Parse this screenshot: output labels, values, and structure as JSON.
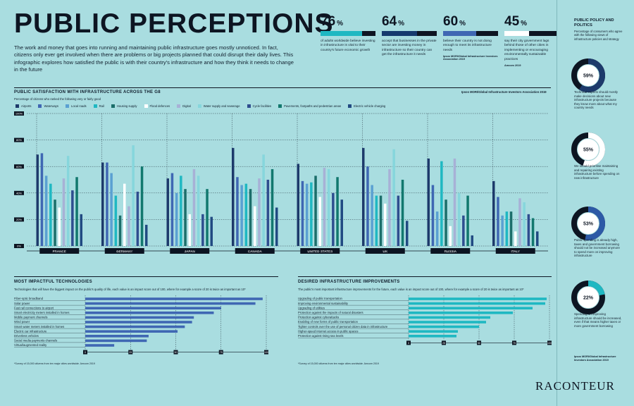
{
  "header": {
    "title": "PUBLIC PERCEPTIONS",
    "intro": "The work and money that goes into running and maintaining public infrastructure goes mostly unnoticed. In fact, citizens only ever get involved when there are problems or big projects planned that could disrupt their daily lives. This infographic explores how satisfied the public is with their country's infrastructure and how they think it needs to change in the future"
  },
  "stats": [
    {
      "value": "76",
      "unit": "%",
      "fraction": 0.76,
      "color": "#1fb8c2",
      "desc": "of adults worldwide believe investing in infrastructure is vital to their country's future economic growth",
      "source": ""
    },
    {
      "value": "64",
      "unit": "%",
      "fraction": 0.64,
      "color": "#163a6e",
      "desc": "accept that businesses in the private sector are investing money in infrastructure so their country can get the infrastructure it needs",
      "source": ""
    },
    {
      "value": "60",
      "unit": "%",
      "fraction": 0.6,
      "color": "#3f67b3",
      "desc": "believe their country is not doing enough to meet its infrastructure needs",
      "source": "Ipsos MORI/Global Infrastructure Investors Association 2019"
    },
    {
      "value": "45",
      "unit": "%",
      "fraction": 0.45,
      "color": "#ffffff",
      "desc": "say their city government lags behind those of other cities in implementing or encouraging environmentally sustainable practices",
      "source": "Amcom 2019"
    }
  ],
  "sidebar": {
    "title": "PUBLIC POLICY AND POLITICS",
    "subtitle": "Percentage of consumers who agree with the following views of infrastructure policies and strategy",
    "donuts": [
      {
        "value": 59,
        "label": "59%",
        "color": "#1d3a6b",
        "text": "Technical experts should mostly make decisions about new infrastructure projects because they know more about what my country needs"
      },
      {
        "value": 55,
        "label": "55%",
        "color": "#ffffff",
        "text": "We should prioritise maintaining and repairing existing infrastructure before spending on new infrastructure"
      },
      {
        "value": 53,
        "label": "53%",
        "color": "#2d5aa6",
        "text": "Public spending is already high, taxes and government borrowing should not be increased anymore to spend more on improving infrastructure"
      },
      {
        "value": 22,
        "label": "22%",
        "color": "#1fb8c2",
        "text": "Spending on improving infrastructure should be increased, even if that means higher taxes or more government borrowing"
      }
    ],
    "source": "Ipsos MORI/Global Infrastructure Investors Association 2019"
  },
  "brand": "RACONTEUR",
  "satisfaction": {
    "title": "PUBLIC SATISFACTION WITH INFRASTRUCTURE ACROSS THE G8",
    "subtitle": "Percentage of citizens who ranked the following very or fairly good",
    "source": "Ipsos MORI/Global Infrastructure Investors Association 2019"
  },
  "chart_data": [
    {
      "type": "bar",
      "title": "PUBLIC SATISFACTION WITH INFRASTRUCTURE ACROSS THE G8",
      "ylim": [
        0,
        100
      ],
      "yticks": [
        0,
        20,
        40,
        60,
        80,
        100
      ],
      "ytick_labels": [
        "0%",
        "20%",
        "40%",
        "60%",
        "80%",
        "100%"
      ],
      "categories": [
        "FRANCE",
        "GERMANY",
        "JAPAN",
        "CANADA",
        "UNITED STATES",
        "UK",
        "RUSSIA",
        "ITALY"
      ],
      "series": [
        {
          "name": "Airports",
          "color": "#1d3a6b",
          "values": [
            69,
            63,
            51,
            74,
            62,
            74,
            66,
            49
          ]
        },
        {
          "name": "Waterways",
          "color": "#3f67b3",
          "values": [
            70,
            63,
            55,
            52,
            49,
            60,
            46,
            37
          ]
        },
        {
          "name": "Local roads",
          "color": "#5aa0d2",
          "values": [
            53,
            55,
            40,
            46,
            47,
            46,
            26,
            23
          ]
        },
        {
          "name": "Rail",
          "color": "#1fb8c2",
          "values": [
            47,
            38,
            53,
            47,
            48,
            38,
            64,
            26
          ]
        },
        {
          "name": "Housing supply",
          "color": "#1b6e6a",
          "values": [
            35,
            23,
            43,
            43,
            53,
            38,
            35,
            26
          ]
        },
        {
          "name": "Flood defences",
          "color": "#ffffff",
          "values": [
            29,
            47,
            24,
            30,
            37,
            32,
            15,
            11
          ]
        },
        {
          "name": "Digital",
          "color": "#a7b1d6",
          "values": [
            51,
            30,
            58,
            51,
            59,
            58,
            66,
            36
          ]
        },
        {
          "name": "Water supply and sewerage",
          "color": "#86d6dc",
          "values": [
            68,
            76,
            53,
            69,
            58,
            73,
            40,
            33
          ]
        },
        {
          "name": "Cycle facilities",
          "color": "#2e4d8f",
          "values": [
            42,
            41,
            24,
            50,
            40,
            38,
            23,
            24
          ]
        },
        {
          "name": "Pavements, footpaths and pedestrian areas",
          "color": "#12786e",
          "values": [
            52,
            60,
            43,
            58,
            52,
            50,
            38,
            21
          ]
        },
        {
          "name": "Electric vehicle charging",
          "color": "#214a82",
          "values": [
            24,
            16,
            22,
            29,
            35,
            19,
            8,
            11
          ]
        }
      ]
    },
    {
      "type": "bar",
      "orientation": "horizontal",
      "title": "MOST IMPACTFUL TECHNOLOGIES",
      "subtitle": "Technologies that will have the biggest impact on the public's quality of life, each value is an impact score out of 100, where for example a score of 20 is twice as important as 10*",
      "xlim": [
        0,
        100
      ],
      "xticks": [
        0,
        25,
        50,
        75,
        100
      ],
      "xtick_labels": [
        "0",
        "25",
        "50",
        "75",
        "100"
      ],
      "color": "#3f67b3",
      "categories": [
        "Fiber-optic broadband",
        "Solar power",
        "Fast rail connections to airport",
        "Smart electricity meters installed in homes",
        "Mobile payment channels",
        "Wind power",
        "Smart water meters installed in homes",
        "Electric car infrastructure",
        "Driverless vehicles",
        "Social media payments channels",
        "Virtual/augmented reality"
      ],
      "values": [
        98,
        94,
        75,
        71,
        60,
        59,
        55,
        51,
        35,
        34,
        16
      ],
      "footnote": "*Survey of 15,000 citizens from ten major cities worldwide. Amcom 2019"
    },
    {
      "type": "bar",
      "orientation": "horizontal",
      "title": "DESIRED INFRASTRUCTURE IMPROVEMENTS",
      "subtitle": "The public's most important infrastructure improvements for the future, each value is an impact score out of 100, where for example a score of 20 is twice as important as 10*",
      "xlim": [
        0,
        100
      ],
      "xticks": [
        0,
        25,
        50,
        75,
        100
      ],
      "xtick_labels": [
        "0",
        "25",
        "50",
        "75",
        "100"
      ],
      "color": "#1fb8c2",
      "categories": [
        "Upgrading of public transportation",
        "Improving environmental sustainability",
        "Upgrading of utilities",
        "Protection against the impacts of natural disasters",
        "Protection against cyberattacks",
        "Enabling of new forms of public transportation",
        "Tighter controls over the use of personal citizen data in infrastructure",
        "Higher-speed internet access in public spaces",
        "Protection against rising sea levels"
      ],
      "values": [
        98,
        97,
        88,
        74,
        58,
        55,
        50,
        35,
        34
      ],
      "footnote": "*Survey of 15,000 citizens from ten major cities worldwide. Amcom 2019"
    }
  ]
}
